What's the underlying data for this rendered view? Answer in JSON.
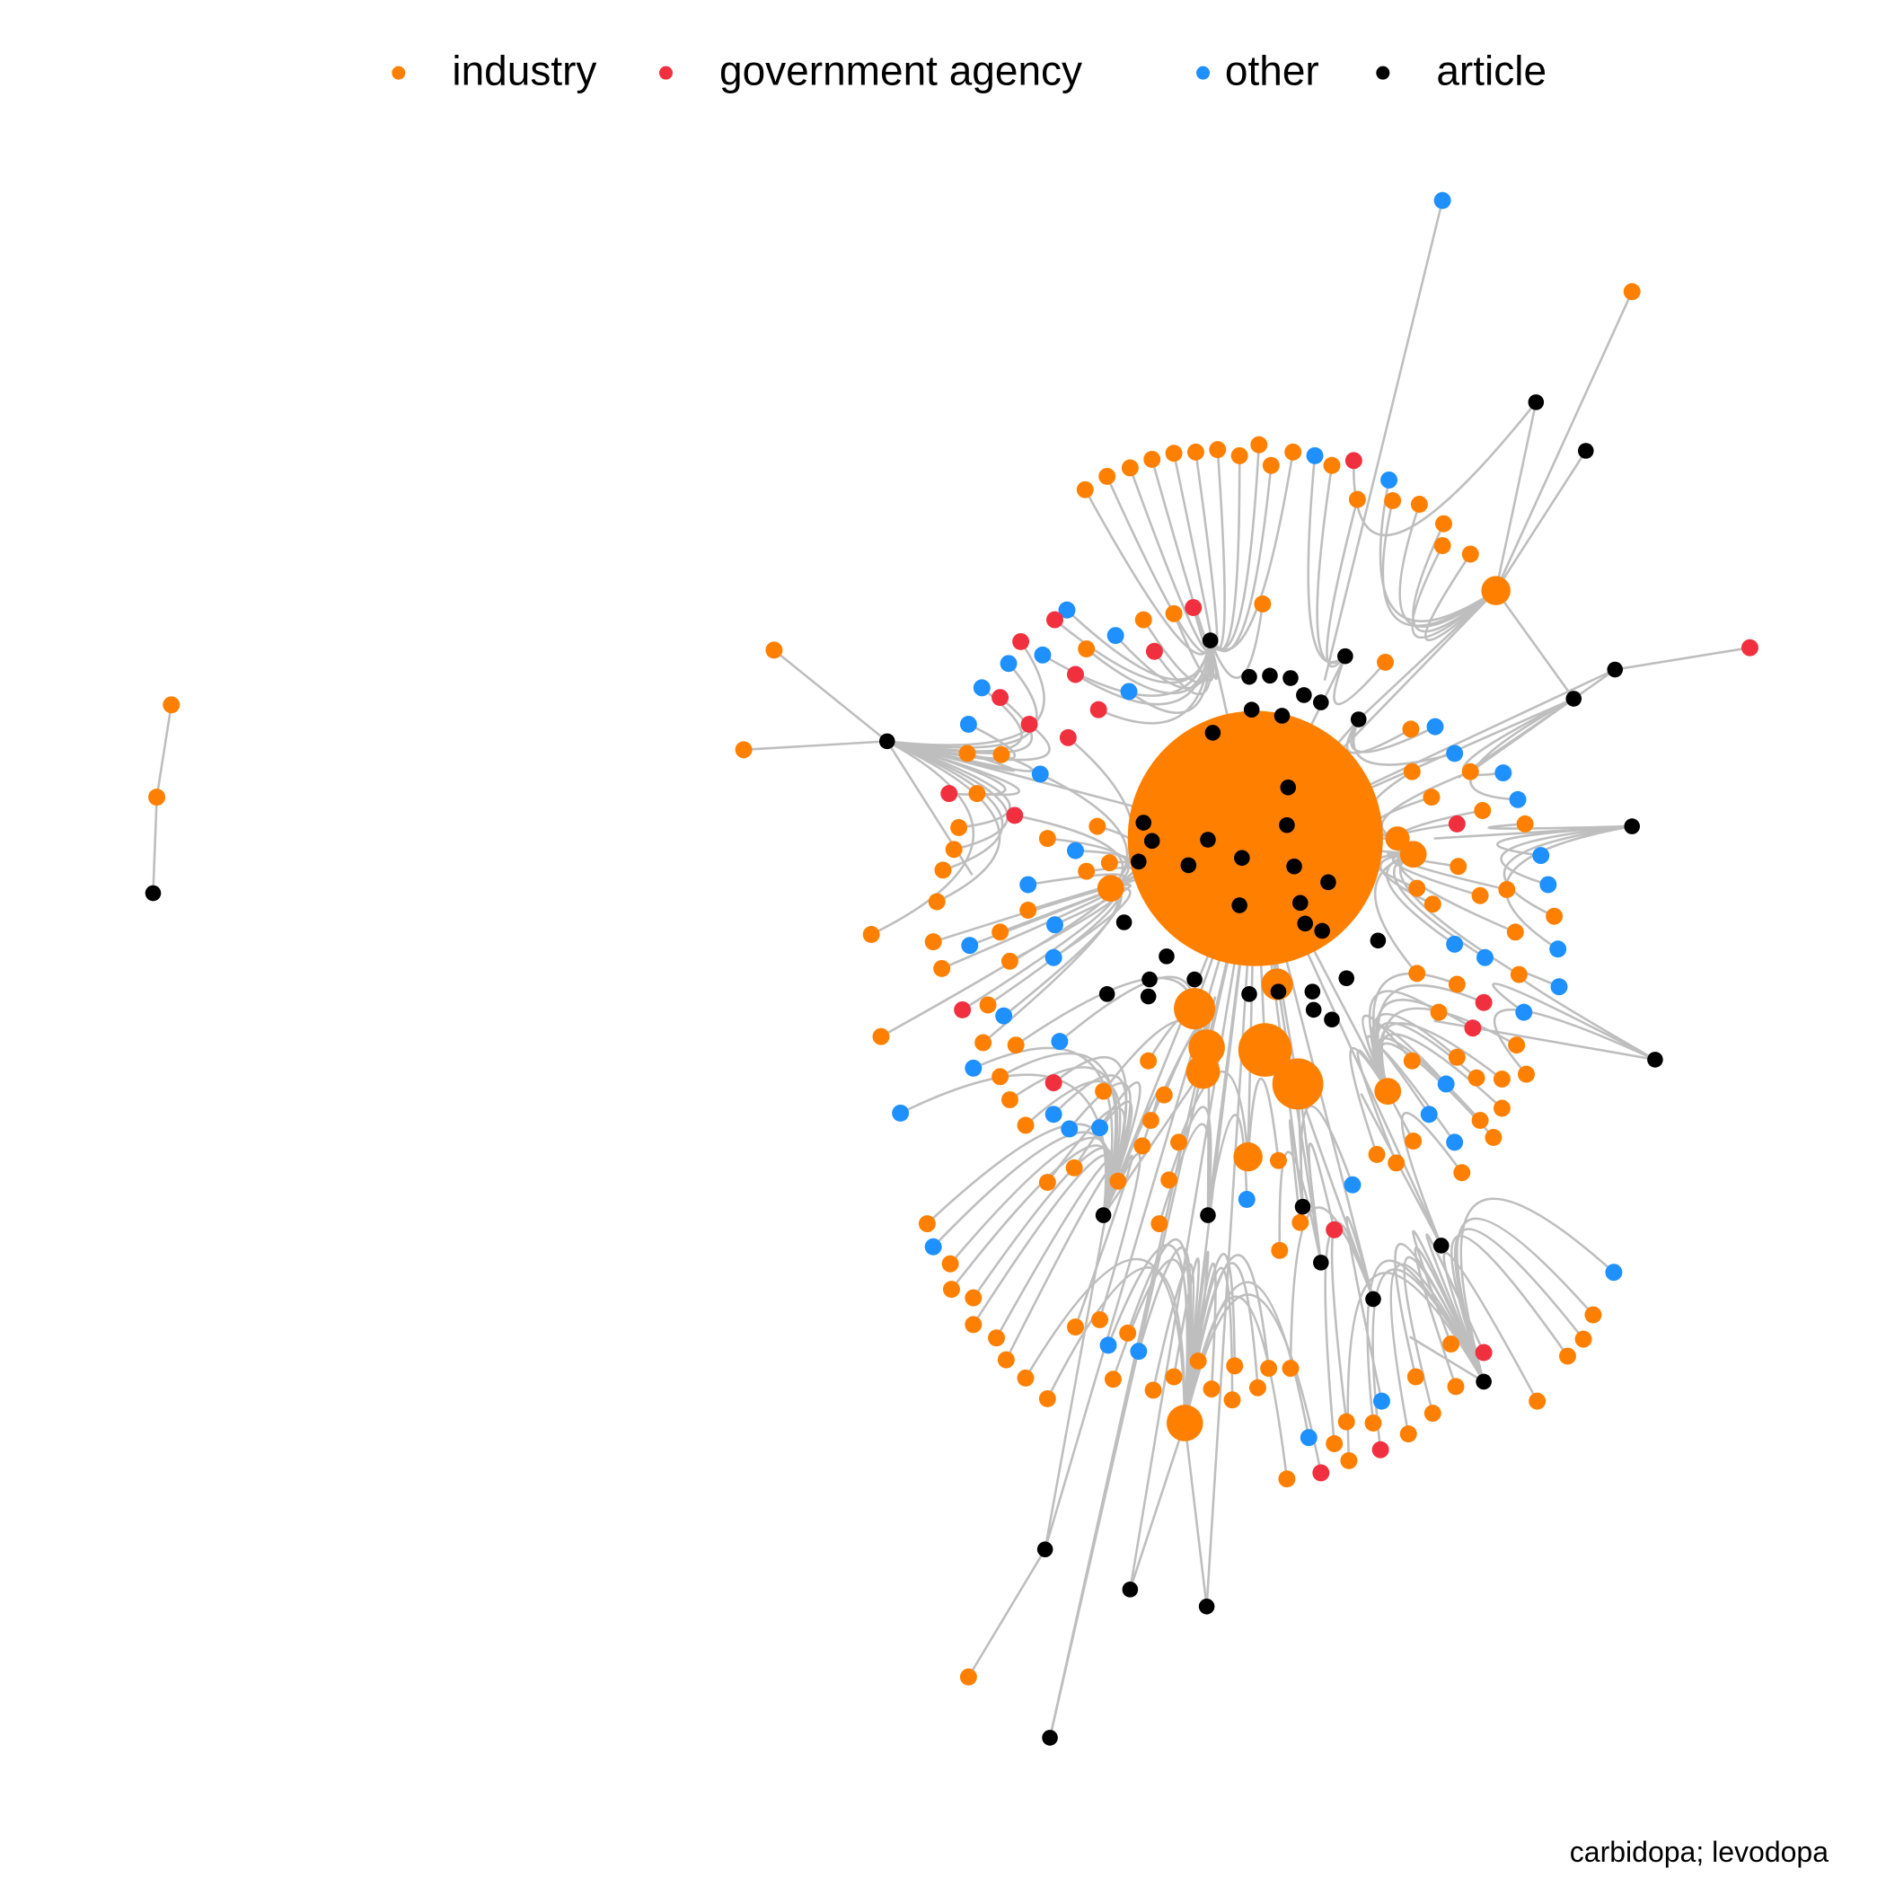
{
  "legend": {
    "items": [
      {
        "label": "industry",
        "color": "#ff8000"
      },
      {
        "label": "government agency",
        "color": "#f0303f"
      },
      {
        "label": "other",
        "color": "#1e90ff"
      },
      {
        "label": "article",
        "color": "#000000"
      }
    ]
  },
  "caption": "carbidopa; levodopa"
}
